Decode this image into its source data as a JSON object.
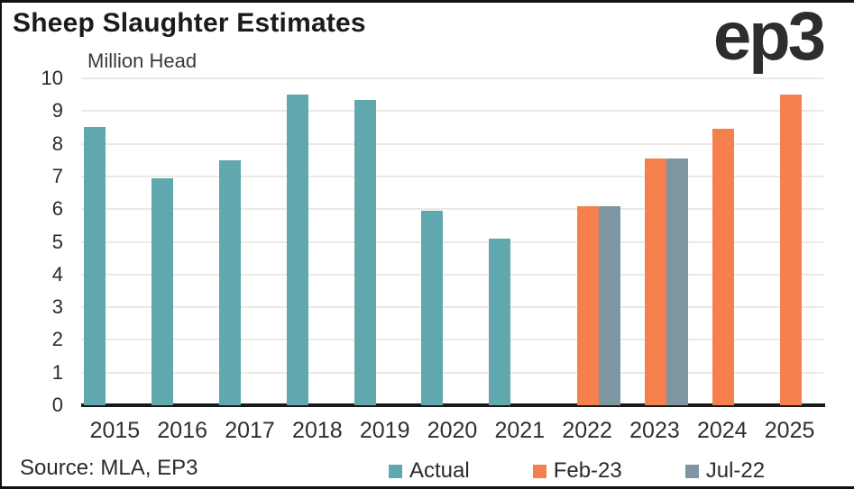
{
  "header": {
    "title": "Sheep Slaughter Estimates",
    "logo_text": "ep3"
  },
  "chart_data": {
    "type": "bar",
    "title": "Sheep Slaughter Estimates",
    "ylabel": "Million Head",
    "xlabel": "",
    "categories": [
      "2015",
      "2016",
      "2017",
      "2018",
      "2019",
      "2020",
      "2021",
      "2022",
      "2023",
      "2024",
      "2025"
    ],
    "series": [
      {
        "name": "Actual",
        "color": "#60a8ae",
        "values": [
          8.5,
          6.95,
          7.5,
          9.5,
          9.35,
          5.95,
          5.1,
          null,
          null,
          null,
          null
        ]
      },
      {
        "name": "Feb-23",
        "color": "#f5804e",
        "values": [
          null,
          null,
          null,
          null,
          null,
          null,
          null,
          6.1,
          7.55,
          8.45,
          9.5
        ]
      },
      {
        "name": "Jul-22",
        "color": "#7e96a2",
        "values": [
          null,
          null,
          null,
          null,
          null,
          null,
          null,
          6.1,
          7.55,
          null,
          null
        ]
      }
    ],
    "ylim": [
      0,
      10
    ],
    "yticks": [
      0,
      1,
      2,
      3,
      4,
      5,
      6,
      7,
      8,
      9,
      10
    ],
    "grid": true,
    "gridline_color": "#eceae0",
    "legend_position": "bottom"
  },
  "footer": {
    "source": "Source: MLA, EP3"
  },
  "colors": {
    "actual": "#60a8ae",
    "feb23": "#f5804e",
    "jul22": "#7e96a2",
    "axis": "#1a1a1a",
    "gridline": "#eceae0",
    "title_text": "#1b1b1b"
  }
}
